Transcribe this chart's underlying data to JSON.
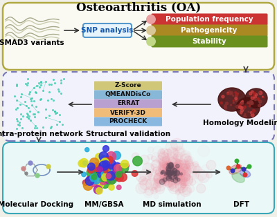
{
  "title": "Osteoarthritis (OA)",
  "bg_color": "#f0efe8",
  "panel1": {
    "border_color": "#b0a840",
    "bg": "#fafaf2",
    "label_smad3": "SMAD3 variants",
    "label_snp": "SNP analysis",
    "snp_box_color": "#e8f4fc",
    "snp_border": "#5599cc",
    "labels_right": [
      "Population frequency",
      "Pathogenicity",
      "Stability"
    ],
    "right_colors": [
      "#cc3333",
      "#aa8822",
      "#6a9020"
    ],
    "right_dot_colors": [
      "#e8a0a0",
      "#d8c898",
      "#c0d888"
    ]
  },
  "panel2": {
    "border_color": "#7878b8",
    "bg": "#f2f2fc",
    "validation_labels": [
      "Z-Score",
      "QMEANDisCo",
      "ERRAT",
      "VERIFY-3D",
      "PROCHECK"
    ],
    "validation_colors": [
      "#d0c878",
      "#88b8d8",
      "#b8a0d0",
      "#f0bc78",
      "#88b8e0"
    ],
    "label_network": "Intra-protein network",
    "label_validation": "Structural validation",
    "label_homology": "Homology Modeling"
  },
  "panel3": {
    "border_color": "#38a8b8",
    "bg": "#eaf8f8",
    "labels": [
      "Molecular Docking",
      "MM/GBSA",
      "MD simulation",
      "DFT"
    ]
  },
  "arrow_color": "#333333",
  "title_fontsize": 12,
  "label_fontsize": 7.0,
  "bold_label_fontsize": 7.5
}
